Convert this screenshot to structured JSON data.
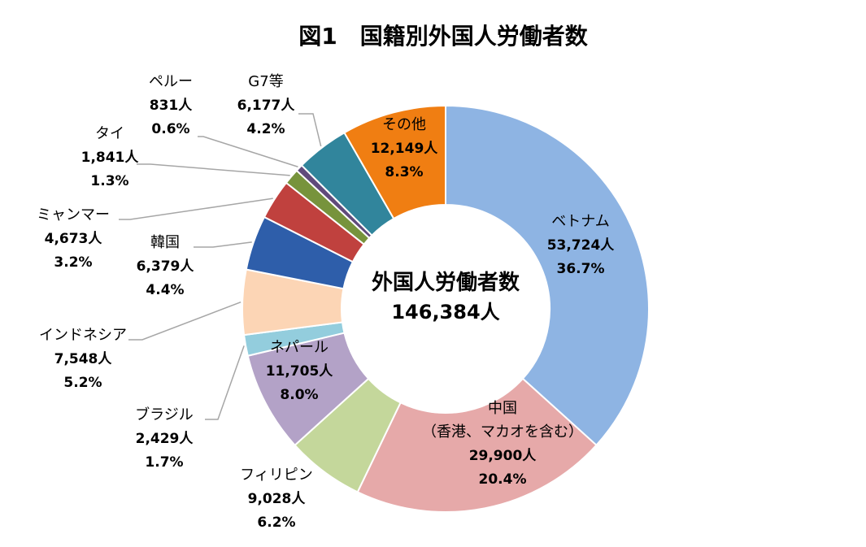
{
  "chart_data": {
    "type": "pie",
    "title": "図1　国籍別外国人労働者数",
    "center_label": "外国人労働者数",
    "center_total": "146,384人",
    "total": 146384,
    "unit": "人",
    "slices": [
      {
        "name": "ベトナム",
        "sub": "",
        "count_label": "53,724人",
        "pct_label": "36.7%",
        "value": 53724,
        "percent": 36.7,
        "color": "#8eb4e3"
      },
      {
        "name": "中国",
        "sub": "（香港、マカオを含む）",
        "count_label": "29,900人",
        "pct_label": "20.4%",
        "value": 29900,
        "percent": 20.4,
        "color": "#e6a9a9"
      },
      {
        "name": "フィリピン",
        "sub": "",
        "count_label": "9,028人",
        "pct_label": "6.2%",
        "value": 9028,
        "percent": 6.2,
        "color": "#c4d79b"
      },
      {
        "name": "ネパール",
        "sub": "",
        "count_label": "11,705人",
        "pct_label": "8.0%",
        "value": 11705,
        "percent": 8.0,
        "color": "#b3a2c7"
      },
      {
        "name": "ブラジル",
        "sub": "",
        "count_label": "2,429人",
        "pct_label": "1.7%",
        "value": 2429,
        "percent": 1.7,
        "color": "#93cddd"
      },
      {
        "name": "インドネシア",
        "sub": "",
        "count_label": "7,548人",
        "pct_label": "5.2%",
        "value": 7548,
        "percent": 5.2,
        "color": "#fcd5b5"
      },
      {
        "name": "韓国",
        "sub": "",
        "count_label": "6,379人",
        "pct_label": "4.4%",
        "value": 6379,
        "percent": 4.4,
        "color": "#2e5eaa"
      },
      {
        "name": "ミャンマー",
        "sub": "",
        "count_label": "4,673人",
        "pct_label": "3.2%",
        "value": 4673,
        "percent": 3.2,
        "color": "#c0413e"
      },
      {
        "name": "タイ",
        "sub": "",
        "count_label": "1,841人",
        "pct_label": "1.3%",
        "value": 1841,
        "percent": 1.3,
        "color": "#77933c"
      },
      {
        "name": "ペルー",
        "sub": "",
        "count_label": "831人",
        "pct_label": "0.6%",
        "value": 831,
        "percent": 0.6,
        "color": "#604a7b"
      },
      {
        "name": "G7等",
        "sub": "",
        "count_label": "6,177人",
        "pct_label": "4.2%",
        "value": 6177,
        "percent": 4.2,
        "color": "#31859c"
      },
      {
        "name": "その他",
        "sub": "",
        "count_label": "12,149人",
        "pct_label": "8.3%",
        "value": 12149,
        "percent": 8.3,
        "color": "#f07e12"
      }
    ]
  }
}
